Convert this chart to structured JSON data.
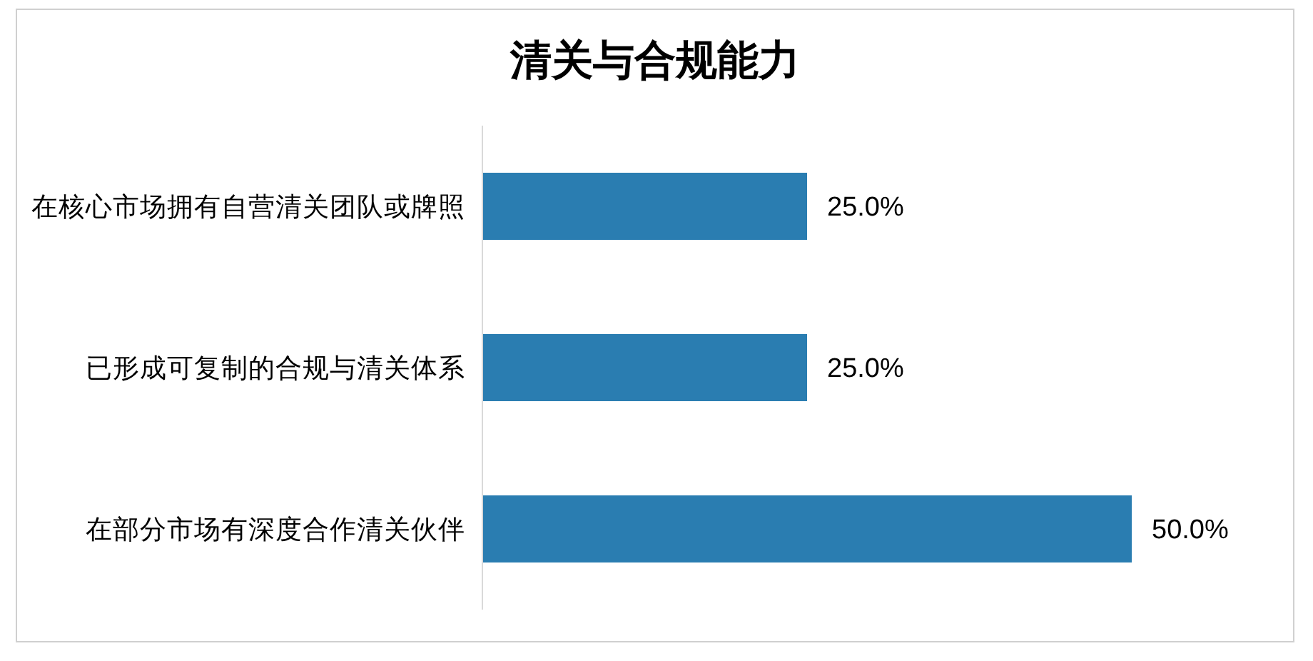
{
  "chart_data": {
    "type": "bar",
    "title": "清关与合规能力",
    "orientation": "horizontal",
    "categories": [
      "在核心市场拥有自营清关团队或牌照",
      "已形成可复制的合规与清关体系",
      "在部分市场有深度合作清关伙伴"
    ],
    "values": [
      25,
      25,
      50
    ],
    "value_labels": [
      "25.0%",
      "25.0%",
      "50.0%"
    ],
    "color": "#2a7db1",
    "tick_labels": "y"
  }
}
